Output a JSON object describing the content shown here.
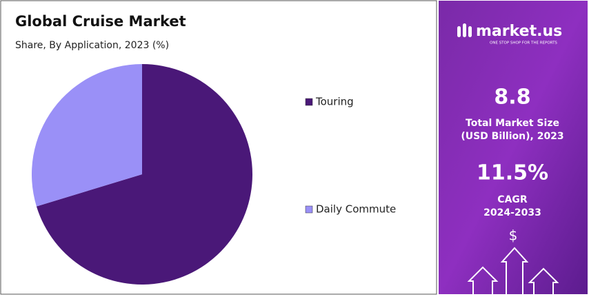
{
  "chart_data": {
    "type": "pie",
    "title": "Global Cruise Market",
    "subtitle": "Share, By Application, 2023 (%)",
    "categories": [
      "Touring",
      "Daily Commute"
    ],
    "values": [
      70.3,
      29.7
    ],
    "colors": [
      "#4a1878",
      "#9a90f7"
    ],
    "legend": "right"
  },
  "panel": {
    "brand": "market.us",
    "tagline": "ONE STOP SHOP FOR THE REPORTS",
    "market_size": "8.8",
    "market_size_label": [
      "Total Market Size",
      "(USD Billion), 2023"
    ],
    "cagr": "11.5%",
    "cagr_label": [
      "CAGR",
      "2024-2033"
    ],
    "icon": "$"
  }
}
